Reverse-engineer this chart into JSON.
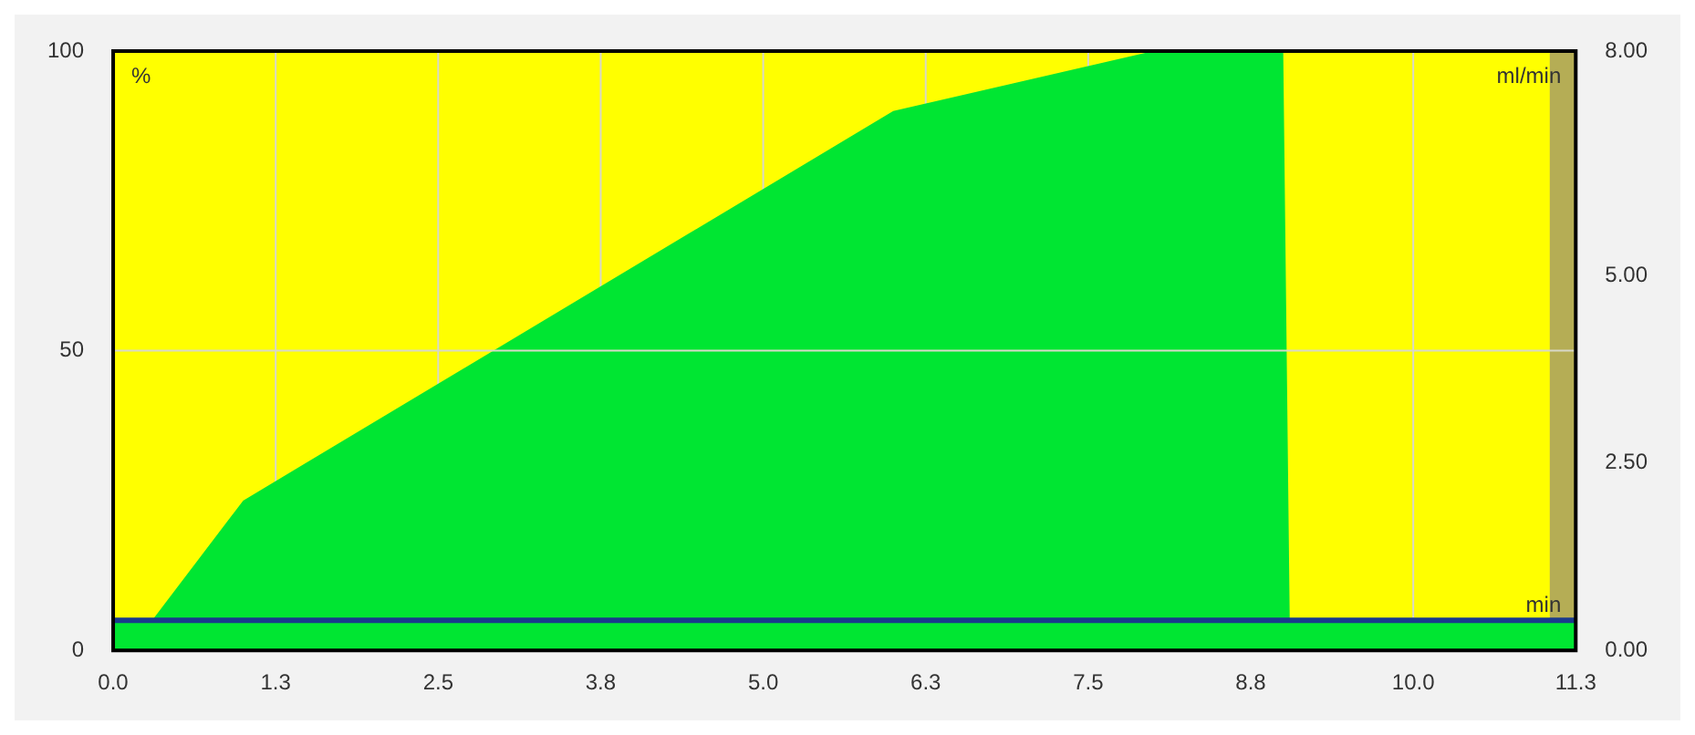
{
  "chart_data": {
    "type": "area",
    "ylabel": "%",
    "y2label": "ml/min",
    "annotations": [
      "min"
    ],
    "series": [
      {
        "color": "#00e632",
        "x": [
          0,
          0.3,
          1.0,
          6.0,
          8.0,
          9.0,
          9.05,
          11.25
        ],
        "values": [
          5,
          5,
          25,
          90,
          100,
          100,
          5,
          5
        ]
      },
      {
        "type": "line",
        "axis": "y2",
        "color": "#1a3a8c",
        "x": [
          0,
          11.25
        ],
        "values": [
          0.4,
          0.4
        ]
      }
    ],
    "xlim": [
      0,
      11.25
    ],
    "xticks": [
      {
        "value": 0,
        "label": "0.0"
      },
      {
        "value": 1.25,
        "label": "1.3"
      },
      {
        "value": 2.5,
        "label": "2.5"
      },
      {
        "value": 3.75,
        "label": "3.8"
      },
      {
        "value": 5,
        "label": "5.0"
      },
      {
        "value": 6.25,
        "label": "6.3"
      },
      {
        "value": 7.5,
        "label": "7.5"
      },
      {
        "value": 8.75,
        "label": "8.8"
      },
      {
        "value": 10,
        "label": "10.0"
      },
      {
        "value": 11.25,
        "label": "11.3"
      }
    ],
    "ylim": [
      0,
      100
    ],
    "yticks": [
      0,
      50,
      100
    ],
    "y2lim": [
      0,
      8
    ],
    "y2ticks": [
      {
        "value": 0,
        "label": "0.00"
      },
      {
        "value": 2.5,
        "label": "2.50"
      },
      {
        "value": 5,
        "label": "5.00"
      },
      {
        "value": 8,
        "label": "8.00"
      }
    ],
    "bands": [
      {
        "axis": "x",
        "from": 11.05,
        "to": 11.25,
        "color": "#b5ad55"
      }
    ],
    "grid": true,
    "legend": false
  }
}
